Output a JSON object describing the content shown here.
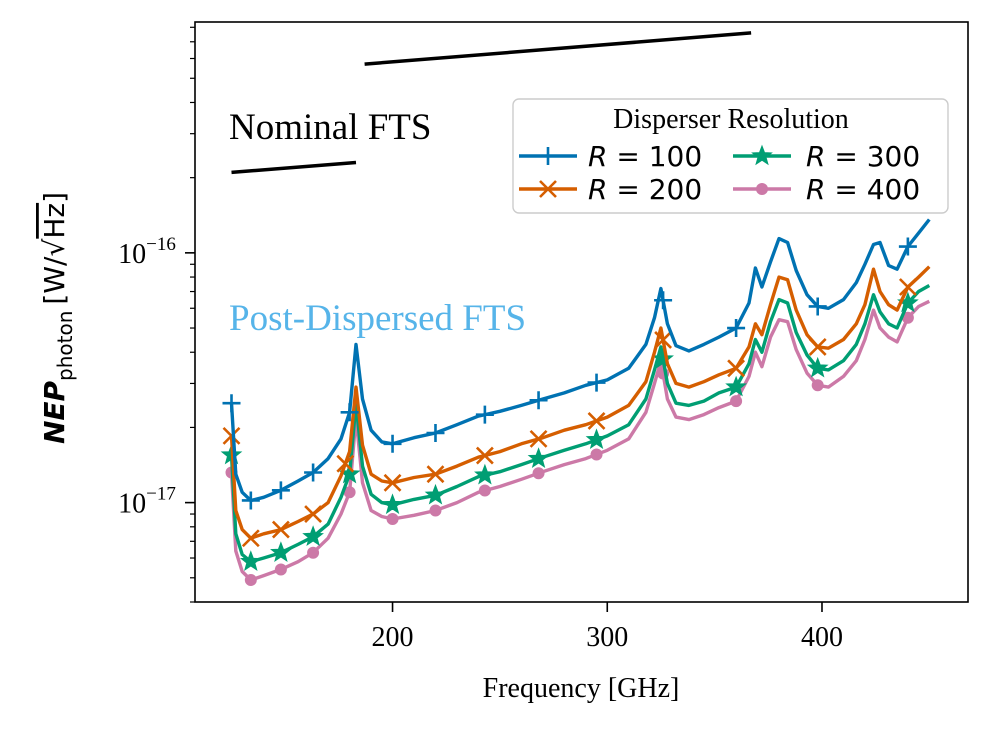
{
  "chart_data": {
    "type": "line",
    "xlabel": "Frequency [GHz]",
    "ylabel": {
      "main": "NEP",
      "sub": "photon",
      "units_prefix": "[W/",
      "units_radicand": "Hz",
      "units_suffix": "]"
    },
    "xscale": "linear",
    "yscale": "log",
    "xlim": [
      108,
      468
    ],
    "ylim": [
      4e-18,
      8.4e-16
    ],
    "xticks": [
      {
        "value": 200,
        "label": "200"
      },
      {
        "value": 300,
        "label": "300"
      },
      {
        "value": 400,
        "label": "400"
      }
    ],
    "yticks": [
      {
        "value": 1e-17,
        "base": "10",
        "exp": "−17"
      },
      {
        "value": 1e-16,
        "base": "10",
        "exp": "−16"
      }
    ],
    "legend": {
      "title": "Disperser Resolution",
      "placement": "top-right",
      "entries": [
        {
          "series": 0,
          "prefix": "R",
          "eq": " = ",
          "value": "100"
        },
        {
          "series": 1,
          "prefix": "R",
          "eq": " = ",
          "value": "200"
        },
        {
          "series": 2,
          "prefix": "R",
          "eq": " = ",
          "value": "300"
        },
        {
          "series": 3,
          "prefix": "R",
          "eq": " = ",
          "value": "400"
        }
      ]
    },
    "annotations": [
      {
        "text": "Nominal FTS",
        "color": "#000000"
      },
      {
        "text": "Post-Dispersed FTS",
        "color": "#56b4e9"
      }
    ],
    "nominal_fts": [
      {
        "x": [
          125,
          183
        ],
        "y": [
          2.1e-16,
          2.3e-16
        ]
      },
      {
        "x": [
          187,
          367
        ],
        "y": [
          5.7e-16,
          7.6e-16
        ]
      }
    ],
    "series": [
      {
        "name": "R = 100",
        "color": "#0072b2",
        "marker": "plus",
        "x": [
          125,
          127,
          130,
          134,
          140,
          148,
          156,
          163,
          170,
          176,
          180,
          183,
          186,
          190,
          195,
          200,
          210,
          220,
          230,
          240,
          250,
          260,
          270,
          280,
          290,
          300,
          310,
          318,
          322,
          325,
          328,
          332,
          338,
          345,
          352,
          360,
          366,
          369,
          372,
          376,
          380,
          384,
          388,
          393,
          398,
          403,
          410,
          416,
          420,
          424,
          427,
          431,
          435,
          440,
          445,
          450
        ],
        "y": [
          2.5e-17,
          1.3e-17,
          1.1e-17,
          1.02e-17,
          1.05e-17,
          1.12e-17,
          1.22e-17,
          1.32e-17,
          1.5e-17,
          1.8e-17,
          2.3e-17,
          4.3e-17,
          2.6e-17,
          1.95e-17,
          1.75e-17,
          1.72e-17,
          1.82e-17,
          1.9e-17,
          2.05e-17,
          2.22e-17,
          2.32e-17,
          2.45e-17,
          2.6e-17,
          2.75e-17,
          2.95e-17,
          3.1e-17,
          3.45e-17,
          4.3e-17,
          5.5e-17,
          7.2e-17,
          5.2e-17,
          4.25e-17,
          4.05e-17,
          4.3e-17,
          4.6e-17,
          5e-17,
          6.3e-17,
          8.7e-17,
          7.3e-17,
          9.2e-17,
          1.14e-16,
          1.1e-16,
          8.5e-17,
          6.8e-17,
          6.1e-17,
          6e-17,
          6.5e-17,
          7.6e-17,
          9e-17,
          1.08e-16,
          1.1e-16,
          8.9e-17,
          8.6e-17,
          1.06e-16,
          1.2e-16,
          1.36e-16
        ],
        "markers_x": [
          125,
          134,
          148,
          163,
          180,
          200,
          220,
          243,
          268,
          295,
          326,
          360,
          398,
          440
        ]
      },
      {
        "name": "R = 200",
        "color": "#d55e00",
        "marker": "x",
        "x": [
          125,
          127,
          130,
          134,
          140,
          148,
          156,
          163,
          170,
          176,
          180,
          183,
          186,
          190,
          195,
          200,
          210,
          220,
          230,
          240,
          250,
          260,
          270,
          280,
          290,
          300,
          310,
          318,
          322,
          325,
          328,
          332,
          338,
          345,
          352,
          360,
          366,
          369,
          372,
          376,
          380,
          384,
          388,
          393,
          398,
          403,
          410,
          416,
          420,
          424,
          427,
          431,
          435,
          440,
          445,
          450
        ],
        "y": [
          1.85e-17,
          9.3e-18,
          7.8e-18,
          7.2e-18,
          7.5e-18,
          7.8e-18,
          8.4e-18,
          9e-18,
          1e-17,
          1.28e-17,
          1.6e-17,
          2.9e-17,
          1.7e-17,
          1.3e-17,
          1.22e-17,
          1.2e-17,
          1.26e-17,
          1.3e-17,
          1.4e-17,
          1.52e-17,
          1.6e-17,
          1.72e-17,
          1.82e-17,
          1.95e-17,
          2.05e-17,
          2.2e-17,
          2.45e-17,
          3.05e-17,
          4e-17,
          5e-17,
          3.6e-17,
          3e-17,
          2.9e-17,
          3.05e-17,
          3.25e-17,
          3.45e-17,
          4.2e-17,
          5.2e-17,
          4.7e-17,
          6.2e-17,
          8e-17,
          7.8e-17,
          5.9e-17,
          4.7e-17,
          4.2e-17,
          4.15e-17,
          4.5e-17,
          5.2e-17,
          6.2e-17,
          8.6e-17,
          7e-17,
          6.2e-17,
          5.9e-17,
          7.3e-17,
          8e-17,
          8.8e-17
        ],
        "markers_x": [
          125,
          134,
          148,
          163,
          178,
          200,
          220,
          243,
          268,
          295,
          326,
          360,
          398,
          440
        ]
      },
      {
        "name": "R = 300",
        "color": "#009e73",
        "marker": "star",
        "x": [
          125,
          127,
          130,
          134,
          140,
          148,
          156,
          163,
          170,
          176,
          180,
          183,
          186,
          190,
          195,
          200,
          210,
          220,
          230,
          240,
          250,
          260,
          270,
          280,
          290,
          300,
          310,
          318,
          322,
          325,
          328,
          332,
          338,
          345,
          352,
          360,
          366,
          369,
          372,
          376,
          380,
          384,
          388,
          393,
          398,
          403,
          410,
          416,
          420,
          424,
          427,
          431,
          435,
          440,
          445,
          450
        ],
        "y": [
          1.55e-17,
          7.5e-18,
          6.2e-18,
          5.8e-18,
          6e-18,
          6.3e-18,
          6.8e-18,
          7.3e-18,
          8.2e-18,
          1.05e-17,
          1.3e-17,
          2.5e-17,
          1.4e-17,
          1.08e-17,
          1e-17,
          9.8e-18,
          1.03e-17,
          1.07e-17,
          1.16e-17,
          1.27e-17,
          1.33e-17,
          1.42e-17,
          1.52e-17,
          1.62e-17,
          1.72e-17,
          1.85e-17,
          2.05e-17,
          2.6e-17,
          3.4e-17,
          4.2e-17,
          3e-17,
          2.5e-17,
          2.45e-17,
          2.55e-17,
          2.75e-17,
          2.9e-17,
          3.6e-17,
          4.5e-17,
          4e-17,
          5.3e-17,
          6.5e-17,
          6.3e-17,
          4.8e-17,
          3.9e-17,
          3.45e-17,
          3.4e-17,
          3.7e-17,
          4.3e-17,
          5.2e-17,
          6.8e-17,
          5.8e-17,
          5.2e-17,
          5e-17,
          6.3e-17,
          7e-17,
          7.4e-17
        ],
        "markers_x": [
          125,
          134,
          148,
          163,
          180,
          200,
          220,
          243,
          268,
          295,
          326,
          360,
          398,
          440
        ]
      },
      {
        "name": "R = 400",
        "color": "#cc79a7",
        "marker": "dot",
        "x": [
          125,
          127,
          130,
          134,
          140,
          148,
          156,
          163,
          170,
          176,
          180,
          183,
          186,
          190,
          195,
          200,
          210,
          220,
          230,
          240,
          250,
          260,
          270,
          280,
          290,
          300,
          310,
          318,
          322,
          325,
          328,
          332,
          338,
          345,
          352,
          360,
          366,
          369,
          372,
          376,
          380,
          384,
          388,
          393,
          398,
          403,
          410,
          416,
          420,
          424,
          427,
          431,
          435,
          440,
          445,
          450
        ],
        "y": [
          1.32e-17,
          6.4e-18,
          5.3e-18,
          4.9e-18,
          5.1e-18,
          5.4e-18,
          5.8e-18,
          6.3e-18,
          7.2e-18,
          9e-18,
          1.1e-17,
          2.2e-17,
          1.2e-17,
          9.3e-18,
          8.8e-18,
          8.6e-18,
          8.9e-18,
          9.3e-18,
          1e-17,
          1.1e-17,
          1.16e-17,
          1.24e-17,
          1.33e-17,
          1.42e-17,
          1.5e-17,
          1.62e-17,
          1.8e-17,
          2.3e-17,
          3e-17,
          3.7e-17,
          2.6e-17,
          2.2e-17,
          2.15e-17,
          2.25e-17,
          2.4e-17,
          2.55e-17,
          3.2e-17,
          4e-17,
          3.5e-17,
          4.6e-17,
          5.4e-17,
          5.3e-17,
          4.1e-17,
          3.3e-17,
          2.95e-17,
          2.9e-17,
          3.2e-17,
          3.7e-17,
          4.5e-17,
          5.9e-17,
          5e-17,
          4.6e-17,
          4.4e-17,
          5.5e-17,
          6.1e-17,
          6.4e-17
        ],
        "markers_x": [
          125,
          134,
          148,
          163,
          180,
          200,
          220,
          243,
          268,
          295,
          326,
          360,
          398,
          440
        ]
      }
    ]
  }
}
